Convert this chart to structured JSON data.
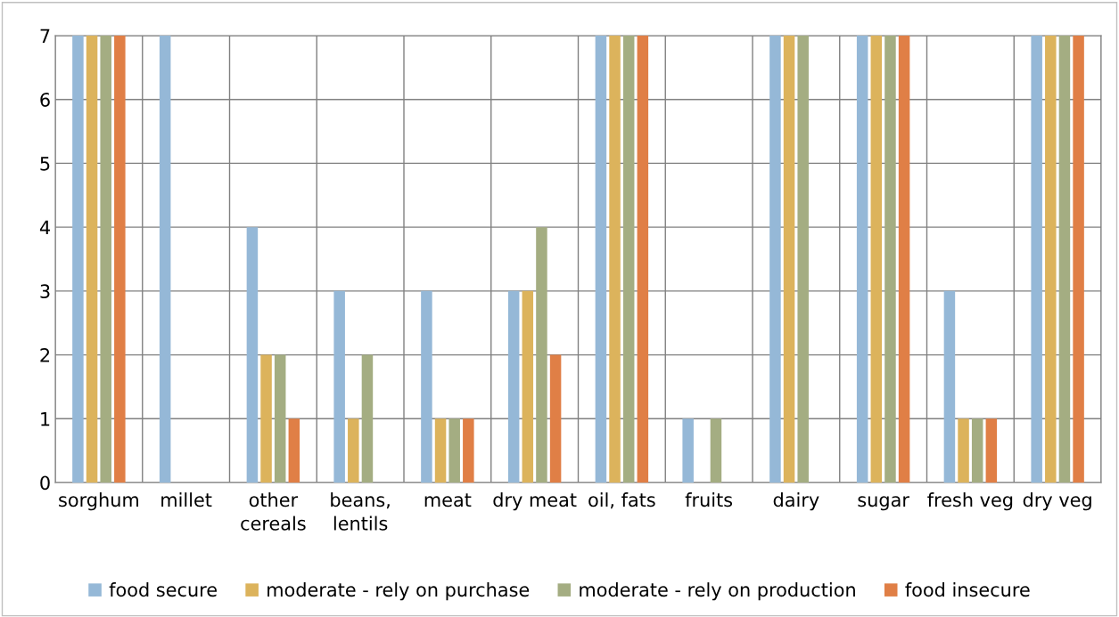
{
  "chart_data": {
    "type": "bar",
    "categories": [
      "sorghum",
      "millet",
      "other\ncereals",
      "beans,\nlentils",
      "meat",
      "dry meat",
      "oil, fats",
      "fruits",
      "dairy",
      "sugar",
      "fresh veg",
      "dry veg"
    ],
    "series": [
      {
        "name": "food secure",
        "color": "#95b8d7",
        "values": [
          7,
          7,
          4,
          3,
          3,
          3,
          7,
          1,
          7,
          7,
          3,
          7
        ]
      },
      {
        "name": "moderate - rely on purchase",
        "color": "#dcb35c",
        "values": [
          7,
          0,
          2,
          1,
          1,
          3,
          7,
          0,
          7,
          7,
          1,
          7
        ]
      },
      {
        "name": "moderate - rely on production",
        "color": "#a4ad82",
        "values": [
          7,
          0,
          2,
          2,
          1,
          4,
          7,
          1,
          7,
          7,
          1,
          7
        ]
      },
      {
        "name": "food insecure",
        "color": "#e07f46",
        "values": [
          7,
          0,
          1,
          0,
          1,
          2,
          7,
          0,
          0,
          7,
          1,
          7
        ]
      }
    ],
    "ylim": [
      0,
      7
    ],
    "yticks": [
      0,
      1,
      2,
      3,
      4,
      5,
      6,
      7
    ],
    "grid": true,
    "legend": "bottom"
  }
}
